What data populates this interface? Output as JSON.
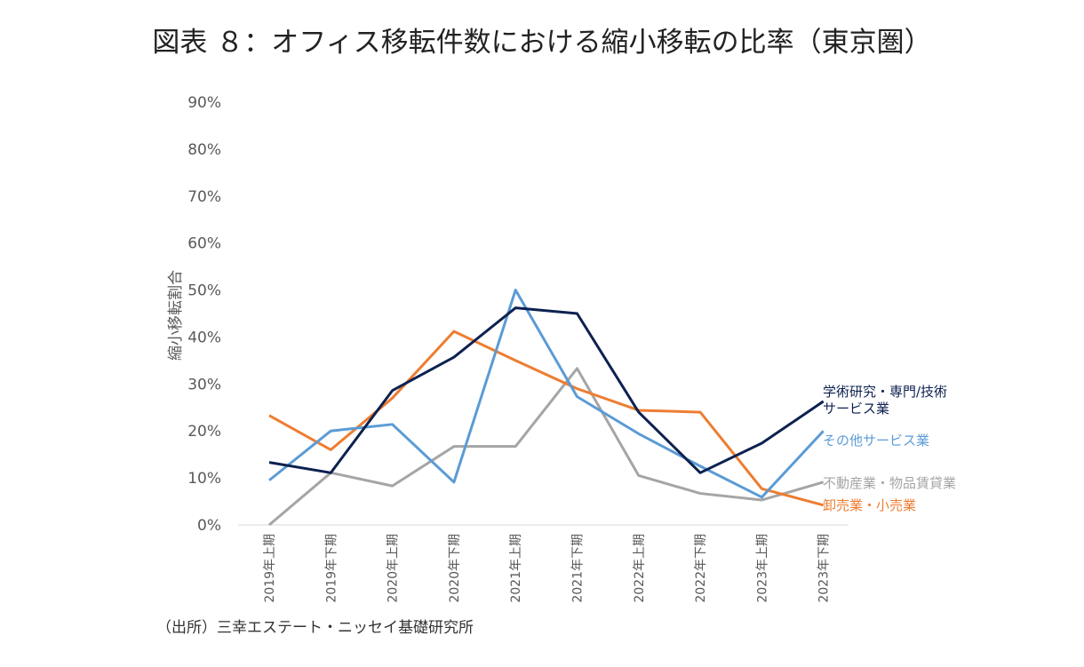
{
  "title": "図表 ８：オフィス移転件数における縮小移転の比率（東京圏）",
  "source": "（出所）三幸エステート・ニッセイ基礎研究所",
  "chart_data": {
    "type": "line",
    "ylabel": "縮小移転割合",
    "xlabel": "",
    "ylim": [
      0,
      0.9
    ],
    "yticks": [
      0,
      0.1,
      0.2,
      0.3,
      0.4,
      0.5,
      0.6,
      0.7,
      0.8,
      0.9
    ],
    "ytick_labels": [
      "0%",
      "10%",
      "20%",
      "30%",
      "40%",
      "50%",
      "60%",
      "70%",
      "80%",
      "90%"
    ],
    "categories": [
      "2019年上期",
      "2019年下期",
      "2020年上期",
      "2020年下期",
      "2021年上期",
      "2021年下期",
      "2022年上期",
      "2022年下期",
      "2023年上期",
      "2023年下期"
    ],
    "series": [
      {
        "name": "学術研究・専門/技術サービス業",
        "label_lines": [
          "学術研究・専門/技術",
          "サービス業"
        ],
        "color": "#0d2150",
        "values": [
          0.133,
          0.111,
          0.286,
          0.357,
          0.462,
          0.45,
          0.24,
          0.111,
          0.174,
          0.263
        ]
      },
      {
        "name": "その他サービス業",
        "label_lines": [
          "その他サービス業"
        ],
        "color": "#5b9bd5",
        "values": [
          0.095,
          0.2,
          0.214,
          0.091,
          0.5,
          0.273,
          0.194,
          0.125,
          0.059,
          0.2
        ]
      },
      {
        "name": "不動産業・物品賃貸業",
        "label_lines": [
          "不動産業・物品賃貸業"
        ],
        "color": "#a5a5a5",
        "values": [
          0.0,
          0.111,
          0.083,
          0.167,
          0.167,
          0.333,
          0.105,
          0.067,
          0.053,
          0.091
        ]
      },
      {
        "name": "卸売業・小売業",
        "label_lines": [
          "卸売業・小売業"
        ],
        "color": "#ed7d31",
        "values": [
          0.233,
          0.16,
          0.27,
          0.412,
          0.35,
          0.29,
          0.244,
          0.24,
          0.077,
          0.042
        ]
      }
    ]
  }
}
